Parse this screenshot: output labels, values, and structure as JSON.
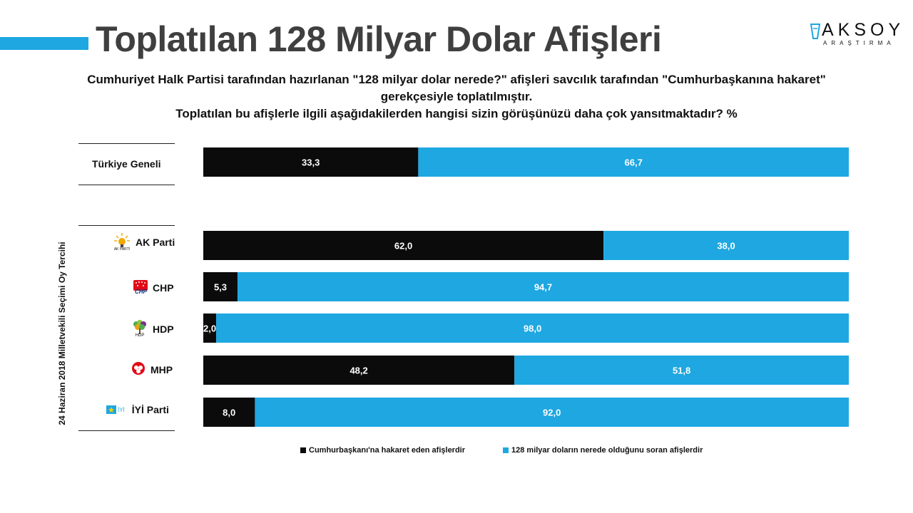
{
  "header": {
    "title": "Toplatılan 128 Milyar Dolar Afişleri",
    "logo_text": "AKSOY",
    "logo_subtext": "ARAŞTIRMA"
  },
  "question": {
    "line1": "Cumhuriyet Halk Partisi tarafından hazırlanan \"128 milyar dolar nerede?\" afişleri savcılık tarafından \"Cumhurbaşkanına hakaret\"",
    "line2": "gerekçesiyle toplatılmıştır.",
    "line3": "Toplatılan bu afişlerle ilgili aşağıdakilerden hangisi sizin görüşünüzü daha çok yansıtmaktadır? %"
  },
  "side_label": "24 Haziran 2018 Milletvekili Seçimi Oy Tercihi",
  "legend": {
    "series1": "Cumhurbaşkanı'na hakaret eden afişlerdir",
    "series2": "128 milyar doların nerede olduğunu soran afişlerdir"
  },
  "logos": {
    "akp": "AK PARTİ",
    "chp": "CHP",
    "hdp": "HDP",
    "iyi": "İYİ"
  },
  "colors": {
    "series1": "#0b0b0b",
    "series2": "#1ea7e1",
    "accent": "#1ea7e1"
  },
  "chart_data": {
    "type": "bar",
    "orientation": "horizontal",
    "stacked": true,
    "categories": [
      "Türkiye Geneli",
      "AK Parti",
      "CHP",
      "HDP",
      "MHP",
      "İYİ Parti"
    ],
    "series": [
      {
        "name": "Cumhurbaşkanı'na hakaret eden afişlerdir",
        "values": [
          33.3,
          62.0,
          5.3,
          2.0,
          48.2,
          8.0
        ]
      },
      {
        "name": "128 milyar doların nerede olduğunu soran afişlerdir",
        "values": [
          66.7,
          38.0,
          94.7,
          98.0,
          51.8,
          92.0
        ]
      }
    ],
    "data_labels": [
      [
        "33,3",
        "62,0",
        "5,3",
        "2,0",
        "48,2",
        "8,0"
      ],
      [
        "66,7",
        "38,0",
        "94,7",
        "98,0",
        "51,8",
        "92,0"
      ]
    ],
    "xlim": [
      0,
      100
    ],
    "legend_position": "bottom"
  }
}
